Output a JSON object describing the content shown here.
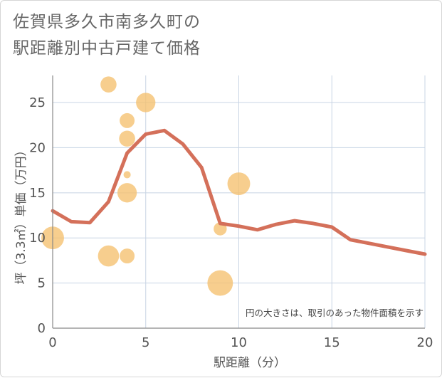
{
  "title_lines": [
    "佐賀県多久市南多久町の",
    "駅距離別中古戸建て価格"
  ],
  "chart_data": {
    "type": "scatter+line",
    "title": "佐賀県多久市南多久町の駅距離別中古戸建て価格",
    "xlabel": "駅距離（分）",
    "ylabel": "坪（3.3㎡）単価（万円）",
    "xlim": [
      0,
      20
    ],
    "ylim": [
      0,
      28
    ],
    "x_ticks": [
      0,
      5,
      10,
      15,
      20
    ],
    "y_ticks": [
      0,
      5,
      10,
      15,
      20,
      25
    ],
    "grid": true,
    "note": "円の大きさは、取引のあった物件面積を示す",
    "colors": {
      "line": "#d4705a",
      "bubble": "#f5c06e",
      "grid": "#c8d4e4",
      "axis": "#888888"
    },
    "scatter": [
      {
        "x": 0,
        "y": 10,
        "size": 3
      },
      {
        "x": 3,
        "y": 27,
        "size": 1.5
      },
      {
        "x": 3,
        "y": 8,
        "size": 2.6
      },
      {
        "x": 4,
        "y": 23,
        "size": 1.3
      },
      {
        "x": 4,
        "y": 21,
        "size": 1.5
      },
      {
        "x": 4,
        "y": 17,
        "size": 0.3
      },
      {
        "x": 4,
        "y": 15,
        "size": 2.2
      },
      {
        "x": 4,
        "y": 8,
        "size": 1.3
      },
      {
        "x": 5,
        "y": 25,
        "size": 2.2
      },
      {
        "x": 9,
        "y": 11,
        "size": 1.0
      },
      {
        "x": 9,
        "y": 5,
        "size": 3.8
      },
      {
        "x": 10,
        "y": 16,
        "size": 3.0
      }
    ],
    "line": {
      "x": [
        0,
        1,
        2,
        3,
        4,
        5,
        6,
        7,
        8,
        9,
        10,
        11,
        12,
        13,
        14,
        15,
        16,
        17,
        18,
        19,
        20
      ],
      "y": [
        13.0,
        11.8,
        11.7,
        14.0,
        19.4,
        21.5,
        21.9,
        20.4,
        17.8,
        11.6,
        11.3,
        10.9,
        11.5,
        11.9,
        11.6,
        11.2,
        9.8,
        9.4,
        9.0,
        8.6,
        8.2
      ]
    }
  }
}
